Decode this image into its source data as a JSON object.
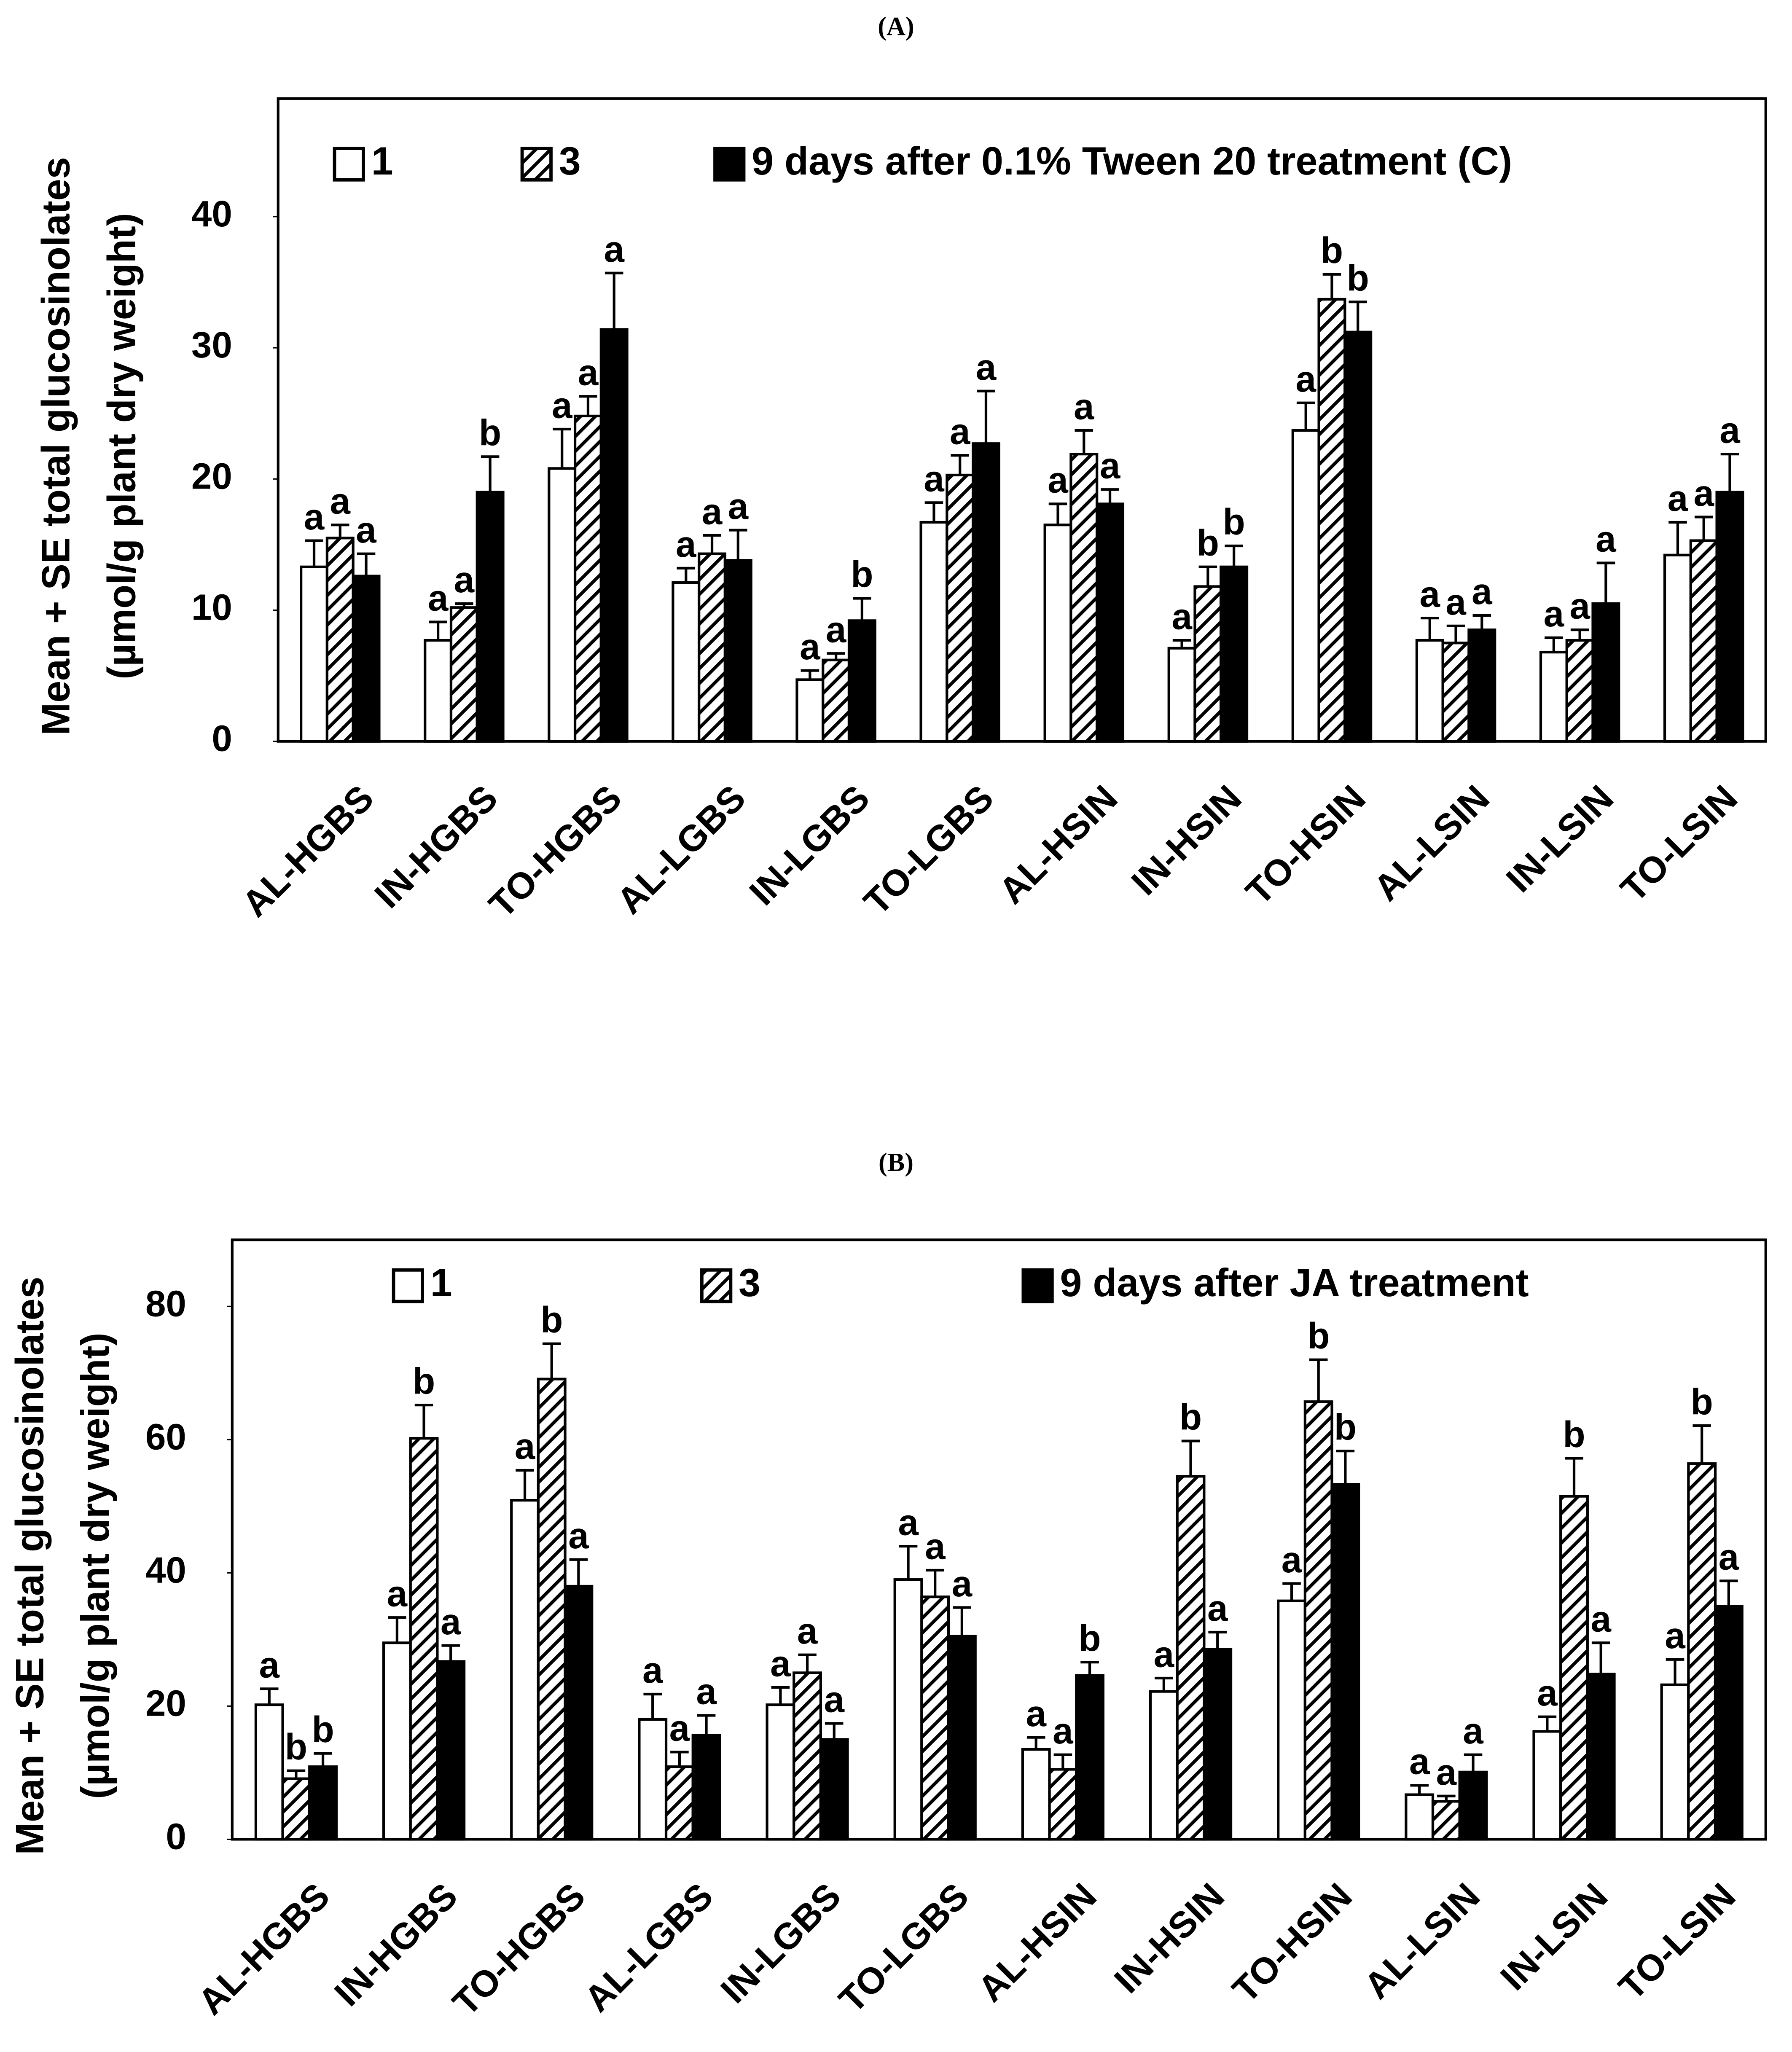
{
  "chart_data": [
    {
      "type": "bar",
      "title": "(A)",
      "ylabel": [
        "Mean + SE total glucosinolates",
        "(µmol/g  plant dry weight)"
      ],
      "categories": [
        "AL-HGBS",
        "IN-HGBS",
        "TO-HGBS",
        "AL-LGBS",
        "IN-LGBS",
        "TO-LGBS",
        "AL-HSIN",
        "IN-HSIN",
        "TO-HSIN",
        "AL-LSIN",
        "IN-LSIN",
        "TO-LSIN"
      ],
      "ylim": [
        0,
        49
      ],
      "yticks": [
        0,
        10,
        20,
        30,
        40
      ],
      "series": [
        {
          "name": "1",
          "color": "#ffffff",
          "hatch": false,
          "values": [
            13.3,
            7.7,
            20.8,
            12.1,
            4.7,
            16.7,
            16.5,
            7.1,
            23.7,
            7.7,
            6.8,
            14.2
          ],
          "errors": [
            2,
            1.4,
            3,
            1.1,
            0.7,
            1.5,
            1.6,
            0.6,
            2.1,
            1.7,
            1.1,
            2.5
          ],
          "letters": [
            "a",
            "a",
            "a",
            "a",
            "a",
            "a",
            "a",
            "a",
            "a",
            "a",
            "a",
            "a"
          ]
        },
        {
          "name": "3",
          "color": "#ffffff",
          "hatch": true,
          "values": [
            15.5,
            10.2,
            24.8,
            14.3,
            6.2,
            20.3,
            21.9,
            11.8,
            33.7,
            7.5,
            7.7,
            15.3
          ],
          "errors": [
            1,
            0.3,
            1.5,
            1.4,
            0.5,
            1.5,
            1.8,
            1.5,
            1.9,
            1.3,
            0.8,
            1.8
          ],
          "letters": [
            "a",
            "a",
            "a",
            "a",
            "a",
            "a",
            "a",
            "b",
            "b",
            "a",
            "a",
            "a"
          ]
        },
        {
          "name": "9 days after 0.1% Tween 20 treatment (C)",
          "color": "#000000",
          "hatch": false,
          "values": [
            12.6,
            19,
            31.4,
            13.8,
            9.2,
            22.7,
            18.1,
            13.3,
            31.2,
            8.5,
            10.5,
            19
          ],
          "errors": [
            1.7,
            2.7,
            4.3,
            2.3,
            1.7,
            4,
            1.1,
            1.6,
            2.3,
            1.1,
            3.1,
            2.9
          ],
          "letters": [
            "a",
            "b",
            "a",
            "a",
            "b",
            "a",
            "a",
            "b",
            "b",
            "a",
            "a",
            "a"
          ]
        }
      ]
    },
    {
      "type": "bar",
      "title": "(B)",
      "ylabel": [
        "Mean + SE total glucosinolates",
        "(µmol/g  plant dry weight)"
      ],
      "categories": [
        "AL-HGBS",
        "IN-HGBS",
        "TO-HGBS",
        "AL-LGBS",
        "IN-LGBS",
        "TO-LGBS",
        "AL-HSIN",
        "IN-HSIN",
        "TO-HSIN",
        "AL-LSIN",
        "IN-LSIN",
        "TO-LSIN"
      ],
      "ylim": [
        0,
        90
      ],
      "yticks": [
        0,
        20,
        40,
        60,
        80
      ],
      "series": [
        {
          "name": "1",
          "color": "#ffffff",
          "hatch": false,
          "values": [
            20.2,
            29.5,
            50.9,
            18,
            20.2,
            39,
            13.5,
            22.2,
            35.8,
            6.7,
            16.2,
            23.2
          ],
          "errors": [
            2.4,
            3.8,
            4.5,
            3.8,
            2.6,
            5,
            1.8,
            2,
            2.6,
            1.4,
            2.2,
            3.8
          ],
          "letters": [
            "a",
            "a",
            "a",
            "a",
            "a",
            "a",
            "a",
            "a",
            "a",
            "a",
            "a",
            "a"
          ]
        },
        {
          "name": "3",
          "color": "#ffffff",
          "hatch": true,
          "values": [
            9.1,
            60.2,
            69.1,
            10.9,
            25,
            36.4,
            10.5,
            54.5,
            65.7,
            5.7,
            51.5,
            56.4
          ],
          "errors": [
            1.2,
            5,
            5.3,
            2.2,
            2.7,
            4,
            2.2,
            5.3,
            6.3,
            0.8,
            5.7,
            5.7
          ],
          "letters": [
            "b",
            "b",
            "b",
            "a",
            "a",
            "a",
            "a",
            "b",
            "b",
            "a",
            "b",
            "b"
          ]
        },
        {
          "name": "9 days after JA treatment",
          "color": "#000000",
          "hatch": false,
          "values": [
            10.9,
            26.7,
            38,
            15.6,
            15,
            30.5,
            24.6,
            28.5,
            53.3,
            10.1,
            24.8,
            35
          ],
          "errors": [
            2,
            2.4,
            4,
            3,
            2.4,
            4.3,
            2,
            2.6,
            5,
            2.6,
            4.7,
            3.8
          ],
          "letters": [
            "b",
            "a",
            "a",
            "a",
            "a",
            "a",
            "b",
            "a",
            "b",
            "a",
            "a",
            "a"
          ]
        }
      ]
    }
  ]
}
